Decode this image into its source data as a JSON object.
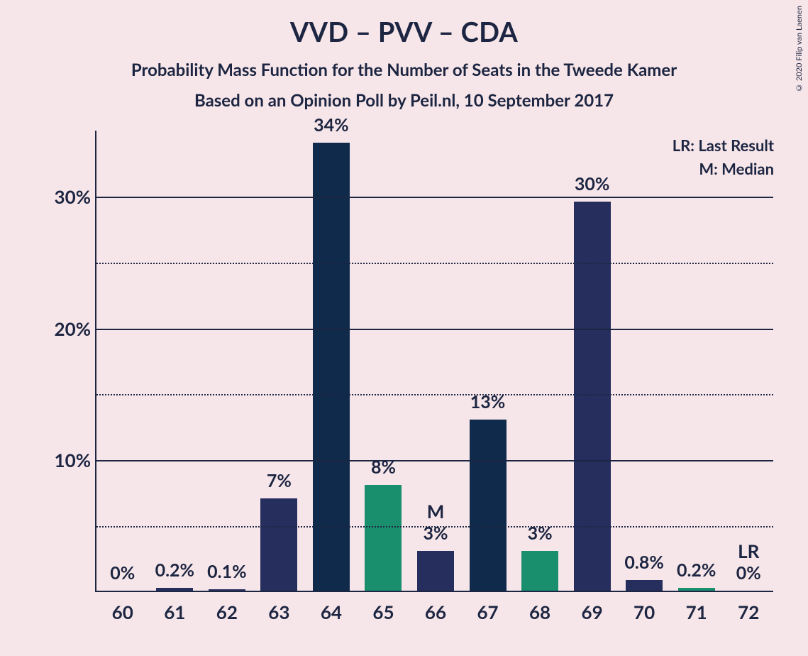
{
  "chart": {
    "title": "VVD – PVV – CDA",
    "subtitle1": "Probability Mass Function for the Number of Seats in the Tweede Kamer",
    "subtitle2": "Based on an Opinion Poll by Peil.nl, 10 September 2017",
    "copyright": "© 2020 Filip van Laenen",
    "legend_lr": "LR: Last Result",
    "legend_m": "M: Median",
    "background_color": "#f7e6e9",
    "text_color": "#1c2541",
    "axis_color": "#1c2541",
    "grid_major_color": "#1c2541",
    "grid_minor_color": "#1c2541",
    "ylim_max": 35,
    "yticks_major": [
      10,
      20,
      30
    ],
    "ytick_labels": [
      "10%",
      "20%",
      "30%"
    ],
    "yticks_minor": [
      5,
      15,
      25
    ],
    "bar_width_ratio": 0.8,
    "categories": [
      "60",
      "61",
      "62",
      "63",
      "64",
      "65",
      "66",
      "67",
      "68",
      "69",
      "70",
      "71",
      "72"
    ],
    "bars": [
      {
        "value": 0,
        "label": "0%",
        "color": "#252e5c",
        "annot": null
      },
      {
        "value": 0.2,
        "label": "0.2%",
        "color": "#252e5c",
        "annot": null
      },
      {
        "value": 0.1,
        "label": "0.1%",
        "color": "#252e5c",
        "annot": null
      },
      {
        "value": 7,
        "label": "7%",
        "color": "#252e5c",
        "annot": null
      },
      {
        "value": 34,
        "label": "34%",
        "color": "#102a4c",
        "annot": null
      },
      {
        "value": 8,
        "label": "8%",
        "color": "#1a8f6d",
        "annot": null
      },
      {
        "value": 3,
        "label": "3%",
        "color": "#252e5c",
        "annot": "M"
      },
      {
        "value": 13,
        "label": "13%",
        "color": "#102a4c",
        "annot": null
      },
      {
        "value": 3,
        "label": "3%",
        "color": "#1a8f6d",
        "annot": null
      },
      {
        "value": 29.5,
        "label": "30%",
        "color": "#252e5c",
        "annot": null
      },
      {
        "value": 0.8,
        "label": "0.8%",
        "color": "#252e5c",
        "annot": null
      },
      {
        "value": 0.2,
        "label": "0.2%",
        "color": "#1a8f6d",
        "annot": null
      },
      {
        "value": 0,
        "label": "0%",
        "color": "#252e5c",
        "annot": "LR"
      }
    ],
    "title_fontsize": 38,
    "subtitle_fontsize": 24,
    "axis_label_fontsize": 26,
    "bar_label_fontsize": 25
  }
}
